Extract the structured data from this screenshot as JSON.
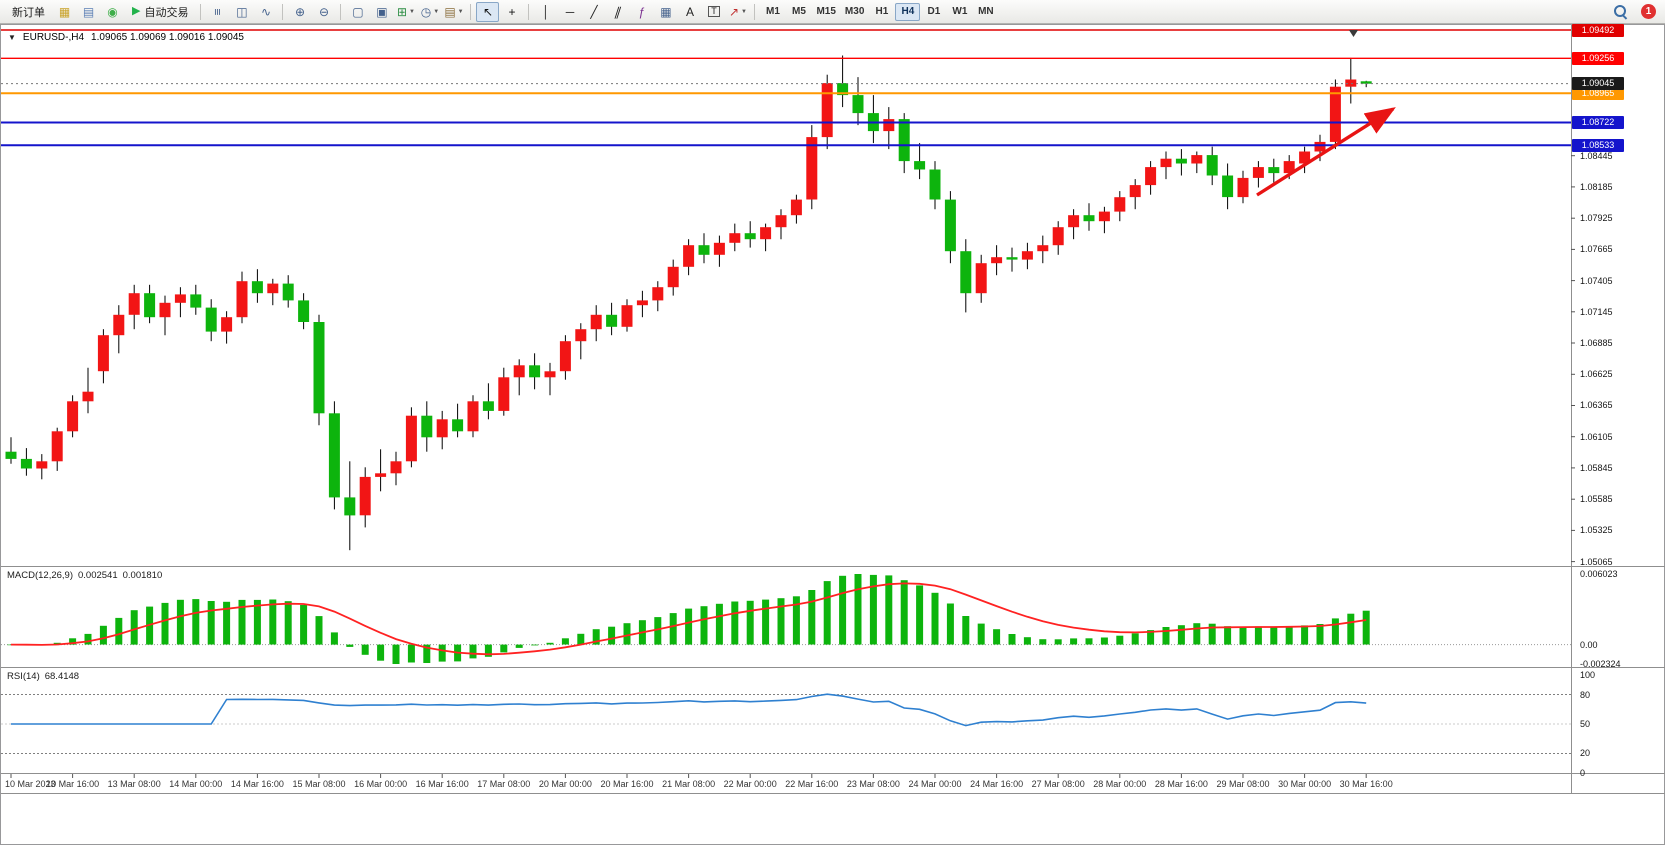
{
  "toolbar": {
    "timeframes": [
      "M1",
      "M5",
      "M15",
      "M30",
      "H1",
      "H4",
      "D1",
      "W1",
      "MN"
    ],
    "active_timeframe": "H4",
    "badge_count": "1",
    "items": [
      {
        "t": "btn",
        "n": "new-order-button",
        "l": "新订单"
      },
      {
        "t": "icon",
        "n": "market-watch-icon",
        "g": "▦",
        "c": "#c9a227"
      },
      {
        "t": "icon",
        "n": "data-window-icon",
        "g": "▤",
        "c": "#5b7fb5"
      },
      {
        "t": "icon",
        "n": "navigator-icon",
        "g": "◉",
        "c": "#3fae49"
      },
      {
        "t": "btn",
        "n": "autotrading-button",
        "g": "▶",
        "c": "#21b24b",
        "l": "自动交易"
      },
      {
        "t": "sep"
      },
      {
        "t": "icon",
        "n": "bar-chart-icon",
        "g": "≡",
        "c": "#44618c",
        "rot": 90
      },
      {
        "t": "icon",
        "n": "candlestick-chart-icon",
        "g": "◫",
        "c": "#44618c"
      },
      {
        "t": "icon",
        "n": "line-chart-icon",
        "g": "∿",
        "c": "#44618c"
      },
      {
        "t": "sep"
      },
      {
        "t": "icon",
        "n": "zoom-in-icon",
        "g": "⊕",
        "c": "#44618c"
      },
      {
        "t": "icon",
        "n": "zoom-out-icon",
        "g": "⊖",
        "c": "#44618c"
      },
      {
        "t": "sep"
      },
      {
        "t": "icon",
        "n": "tile-windows-icon",
        "g": "▢",
        "c": "#44618c"
      },
      {
        "t": "icon",
        "n": "cascade-windows-icon",
        "g": "▣",
        "c": "#44618c"
      },
      {
        "t": "icon",
        "n": "new-chart-icon",
        "g": "⊞",
        "c": "#2f8f46",
        "caret": true
      },
      {
        "t": "icon",
        "n": "period-clock-icon",
        "g": "◷",
        "c": "#44618c",
        "caret": true
      },
      {
        "t": "icon",
        "n": "template-icon",
        "g": "▤",
        "c": "#8a6d3b",
        "caret": true
      },
      {
        "t": "sep"
      },
      {
        "t": "icon",
        "n": "cursor-icon",
        "g": "↖",
        "c": "#111",
        "active": true
      },
      {
        "t": "icon",
        "n": "crosshair-icon",
        "g": "+",
        "c": "#111"
      },
      {
        "t": "sep"
      },
      {
        "t": "icon",
        "n": "vertical-line-icon",
        "g": "│",
        "c": "#222"
      },
      {
        "t": "icon",
        "n": "horizontal-line-icon",
        "g": "─",
        "c": "#222"
      },
      {
        "t": "icon",
        "n": "trendline-icon",
        "g": "╱",
        "c": "#222"
      },
      {
        "t": "icon",
        "n": "channel-icon",
        "g": "∥",
        "c": "#222",
        "skew": true
      },
      {
        "t": "icon",
        "n": "fibonacci-icon",
        "g": "ƒ",
        "c": "#7a2f8f"
      },
      {
        "t": "icon",
        "n": "shapes-icon",
        "g": "▦",
        "c": "#44618c"
      },
      {
        "t": "icon",
        "n": "text-icon",
        "g": "A",
        "c": "#222"
      },
      {
        "t": "icon",
        "n": "text-label-icon",
        "g": "T",
        "c": "#222",
        "boxed": true
      },
      {
        "t": "icon",
        "n": "arrows-icon",
        "g": "↗",
        "c": "#c03030",
        "caret": true
      },
      {
        "t": "sep"
      },
      {
        "t": "tf"
      },
      {
        "t": "spacer"
      },
      {
        "t": "search"
      },
      {
        "t": "badge"
      }
    ]
  },
  "chart": {
    "title": {
      "symbol_period": "EURUSD-,H4",
      "ohlc": "1.09065 1.09069 1.09016 1.09045"
    }
  },
  "colors": {
    "bull": "#f21515",
    "bear": "#0db40d",
    "wick": "#000000",
    "macd_bar": "#0db40d",
    "macd_signal": "#ff2222",
    "rsi_line": "#2f80d0",
    "arrow": "#e81414"
  },
  "chart_data": {
    "type": "candlestick",
    "symbol": "EURUSD-",
    "timeframe": "H4",
    "current_price": 1.09045,
    "price_ticks": [
      "1.08445",
      "1.08185",
      "1.07925",
      "1.07665",
      "1.07405",
      "1.07145",
      "1.06885",
      "1.06625",
      "1.06365",
      "1.06105",
      "1.05845",
      "1.05585",
      "1.05325",
      "1.05065"
    ],
    "hlines": [
      {
        "name": "resistance-line-upper",
        "price": 1.09492,
        "label": "1.09492",
        "color": "#e00000",
        "w": 1.4
      },
      {
        "name": "resistance-line-lower",
        "price": 1.09256,
        "label": "1.09256",
        "color": "#ff0000",
        "w": 1.4
      },
      {
        "name": "pivot-line-orange",
        "price": 1.08965,
        "label": "1.08965",
        "color": "#ff9800",
        "w": 2
      },
      {
        "name": "support-line-upper",
        "price": 1.08722,
        "label": "1.08722",
        "color": "#1414cc",
        "w": 2
      },
      {
        "name": "support-line-lower",
        "price": 1.08533,
        "label": "1.08533",
        "color": "#1414cc",
        "w": 2
      }
    ],
    "bid_tag": {
      "label": "1.09045",
      "bg": "#1a1a1a"
    },
    "time_labels": [
      "10 Mar 2023",
      "10 Mar 16:00",
      "13 Mar 08:00",
      "14 Mar 00:00",
      "14 Mar 16:00",
      "15 Mar 08:00",
      "16 Mar 00:00",
      "16 Mar 16:00",
      "17 Mar 08:00",
      "20 Mar 00:00",
      "20 Mar 16:00",
      "21 Mar 08:00",
      "22 Mar 00:00",
      "22 Mar 16:00",
      "23 Mar 08:00",
      "24 Mar 00:00",
      "24 Mar 16:00",
      "27 Mar 08:00",
      "28 Mar 00:00",
      "28 Mar 16:00",
      "29 Mar 08:00",
      "30 Mar 00:00",
      "30 Mar 16:00"
    ],
    "candles": [
      [
        1.0598,
        1.061,
        1.0588,
        1.0592
      ],
      [
        1.0592,
        1.0601,
        1.0578,
        1.0584
      ],
      [
        1.0584,
        1.0596,
        1.0575,
        1.059
      ],
      [
        1.059,
        1.0618,
        1.0582,
        1.0615
      ],
      [
        1.0615,
        1.0645,
        1.061,
        1.064
      ],
      [
        1.064,
        1.0668,
        1.063,
        1.0648
      ],
      [
        1.0665,
        1.07,
        1.0655,
        1.0695
      ],
      [
        1.0695,
        1.072,
        1.068,
        1.0712
      ],
      [
        1.0712,
        1.0737,
        1.07,
        1.073
      ],
      [
        1.073,
        1.0737,
        1.0705,
        1.071
      ],
      [
        1.071,
        1.0728,
        1.0695,
        1.0722
      ],
      [
        1.0722,
        1.0735,
        1.071,
        1.0729
      ],
      [
        1.0729,
        1.0737,
        1.0712,
        1.0718
      ],
      [
        1.0718,
        1.0725,
        1.069,
        1.0698
      ],
      [
        1.0698,
        1.0715,
        1.0688,
        1.071
      ],
      [
        1.071,
        1.0748,
        1.0705,
        1.074
      ],
      [
        1.074,
        1.075,
        1.0722,
        1.073
      ],
      [
        1.073,
        1.0742,
        1.072,
        1.0738
      ],
      [
        1.0738,
        1.0745,
        1.0718,
        1.0724
      ],
      [
        1.0724,
        1.073,
        1.07,
        1.0706
      ],
      [
        1.0706,
        1.0712,
        1.062,
        1.063
      ],
      [
        1.063,
        1.064,
        1.055,
        1.056
      ],
      [
        1.056,
        1.059,
        1.0516,
        1.0545
      ],
      [
        1.0545,
        1.0585,
        1.0535,
        1.0577
      ],
      [
        1.0577,
        1.06,
        1.0565,
        1.058
      ],
      [
        1.058,
        1.0598,
        1.057,
        1.059
      ],
      [
        1.059,
        1.0635,
        1.0585,
        1.0628
      ],
      [
        1.0628,
        1.064,
        1.0598,
        1.061
      ],
      [
        1.061,
        1.0632,
        1.06,
        1.0625
      ],
      [
        1.0625,
        1.0638,
        1.061,
        1.0615
      ],
      [
        1.0615,
        1.0645,
        1.061,
        1.064
      ],
      [
        1.064,
        1.0655,
        1.0625,
        1.0632
      ],
      [
        1.0632,
        1.0668,
        1.0628,
        1.066
      ],
      [
        1.066,
        1.0675,
        1.0645,
        1.067
      ],
      [
        1.067,
        1.068,
        1.065,
        1.066
      ],
      [
        1.066,
        1.0672,
        1.0645,
        1.0665
      ],
      [
        1.0665,
        1.0695,
        1.0658,
        1.069
      ],
      [
        1.069,
        1.0705,
        1.0675,
        1.07
      ],
      [
        1.07,
        1.072,
        1.069,
        1.0712
      ],
      [
        1.0712,
        1.0722,
        1.0695,
        1.0702
      ],
      [
        1.0702,
        1.0725,
        1.0698,
        1.072
      ],
      [
        1.072,
        1.0732,
        1.071,
        1.0724
      ],
      [
        1.0724,
        1.074,
        1.0715,
        1.0735
      ],
      [
        1.0735,
        1.0758,
        1.0728,
        1.0752
      ],
      [
        1.0752,
        1.0775,
        1.0745,
        1.077
      ],
      [
        1.077,
        1.078,
        1.0755,
        1.0762
      ],
      [
        1.0762,
        1.0778,
        1.0752,
        1.0772
      ],
      [
        1.0772,
        1.0788,
        1.0765,
        1.078
      ],
      [
        1.078,
        1.079,
        1.0768,
        1.0775
      ],
      [
        1.0775,
        1.0788,
        1.0765,
        1.0785
      ],
      [
        1.0785,
        1.08,
        1.0775,
        1.0795
      ],
      [
        1.0795,
        1.0812,
        1.0788,
        1.0808
      ],
      [
        1.0808,
        1.087,
        1.08,
        1.086
      ],
      [
        1.086,
        1.0912,
        1.085,
        1.0905
      ],
      [
        1.0905,
        1.0928,
        1.0885,
        1.0895
      ],
      [
        1.0895,
        1.091,
        1.087,
        1.088
      ],
      [
        1.088,
        1.0895,
        1.0855,
        1.0865
      ],
      [
        1.0865,
        1.0885,
        1.085,
        1.0875
      ],
      [
        1.0875,
        1.088,
        1.083,
        1.084
      ],
      [
        1.084,
        1.0855,
        1.0825,
        1.0833
      ],
      [
        1.0833,
        1.084,
        1.08,
        1.0808
      ],
      [
        1.0808,
        1.0815,
        1.0755,
        1.0765
      ],
      [
        1.0765,
        1.0775,
        1.0714,
        1.073
      ],
      [
        1.073,
        1.0762,
        1.0722,
        1.0755
      ],
      [
        1.0755,
        1.077,
        1.0745,
        1.076
      ],
      [
        1.076,
        1.0768,
        1.0748,
        1.0758
      ],
      [
        1.0758,
        1.0772,
        1.075,
        1.0765
      ],
      [
        1.0765,
        1.0778,
        1.0755,
        1.077
      ],
      [
        1.077,
        1.079,
        1.0762,
        1.0785
      ],
      [
        1.0785,
        1.08,
        1.0775,
        1.0795
      ],
      [
        1.0795,
        1.0805,
        1.0782,
        1.079
      ],
      [
        1.079,
        1.0802,
        1.078,
        1.0798
      ],
      [
        1.0798,
        1.0815,
        1.079,
        1.081
      ],
      [
        1.081,
        1.0825,
        1.08,
        1.082
      ],
      [
        1.082,
        1.084,
        1.0812,
        1.0835
      ],
      [
        1.0835,
        1.0848,
        1.0825,
        1.0842
      ],
      [
        1.0842,
        1.085,
        1.0828,
        1.0838
      ],
      [
        1.0838,
        1.0848,
        1.083,
        1.0845
      ],
      [
        1.0845,
        1.0852,
        1.082,
        1.0828
      ],
      [
        1.0828,
        1.0838,
        1.08,
        1.081
      ],
      [
        1.081,
        1.0832,
        1.0805,
        1.0826
      ],
      [
        1.0826,
        1.084,
        1.0818,
        1.0835
      ],
      [
        1.0835,
        1.0842,
        1.0822,
        1.083
      ],
      [
        1.083,
        1.0845,
        1.0825,
        1.084
      ],
      [
        1.0838,
        1.0852,
        1.083,
        1.0848
      ],
      [
        1.0848,
        1.0862,
        1.084,
        1.0856
      ],
      [
        1.0856,
        1.0908,
        1.085,
        1.0902
      ],
      [
        1.0902,
        1.0926,
        1.0888,
        1.0908
      ],
      [
        1.09065,
        1.09069,
        1.09016,
        1.09045
      ]
    ],
    "macd": {
      "label": "MACD(12,26,9)",
      "main": "0.002541",
      "signal": "0.001810",
      "params": [
        12,
        26,
        9
      ],
      "axis_max": "0.006023",
      "axis_zero": "0.00",
      "axis_min": "-0.002324"
    },
    "rsi": {
      "label": "RSI(14)",
      "value": "68.4148",
      "period": 14,
      "axis": [
        "100",
        "80",
        "50",
        "20",
        "0"
      ],
      "levels": [
        80,
        50,
        20
      ]
    }
  }
}
